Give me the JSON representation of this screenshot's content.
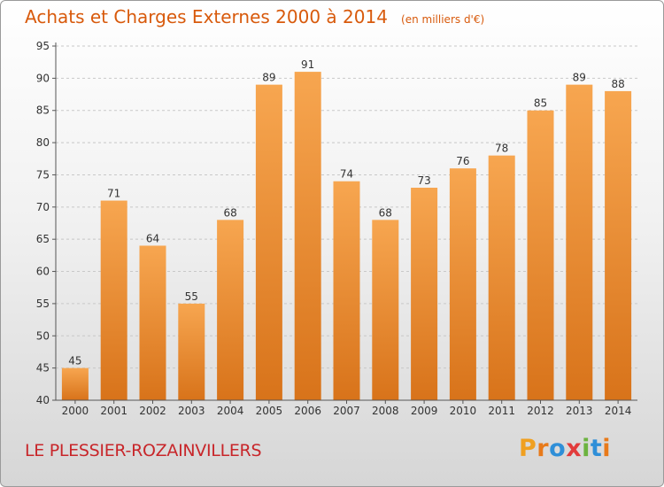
{
  "title": "Achats et Charges Externes 2000 à 2014",
  "subtitle": "(en milliers d'€)",
  "commune": "LE PLESSIER-ROZAINVILLERS",
  "logo": {
    "letters": [
      "P",
      "r",
      "o",
      "x",
      "i",
      "t",
      "i"
    ],
    "colors": [
      "#f0a020",
      "#e87a1a",
      "#2f8fd8",
      "#e23b3b",
      "#6cb33f",
      "#2f8fd8",
      "#e87a1a"
    ]
  },
  "colors": {
    "bar_light": "#f7a650",
    "bar_dark": "#d8731a",
    "accent": "#d85a0c"
  },
  "chart_data": {
    "type": "bar",
    "categories": [
      "2000",
      "2001",
      "2002",
      "2003",
      "2004",
      "2005",
      "2006",
      "2007",
      "2008",
      "2009",
      "2010",
      "2011",
      "2012",
      "2013",
      "2014"
    ],
    "values": [
      45,
      71,
      64,
      55,
      68,
      89,
      91,
      74,
      68,
      73,
      76,
      78,
      85,
      89,
      88
    ],
    "ylim": [
      40,
      95
    ],
    "yticks": [
      40,
      45,
      50,
      55,
      60,
      65,
      70,
      75,
      80,
      85,
      90,
      95
    ],
    "grid": true,
    "data_labels": true,
    "xlabel": "",
    "ylabel": ""
  }
}
